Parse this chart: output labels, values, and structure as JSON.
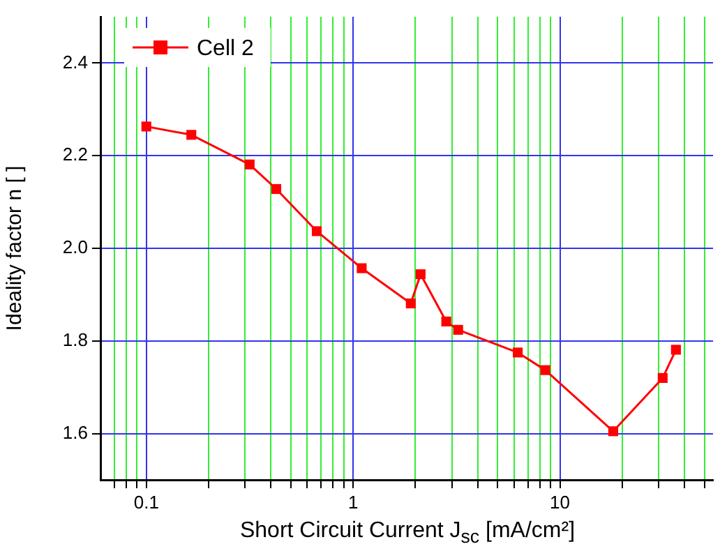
{
  "chart_data": {
    "type": "line",
    "xlabel": "Short Circuit Current J$_{sc}$ [mA/cm²]",
    "ylabel": "Ideality factor n [ ]",
    "x": [
      0.1,
      0.165,
      0.316,
      0.425,
      0.667,
      1.1,
      1.9,
      2.12,
      2.82,
      3.22,
      6.25,
      8.5,
      18.1,
      31.4,
      36.4
    ],
    "series": [
      {
        "name": "Cell 2",
        "color": "#ff0000",
        "values": [
          2.263,
          2.245,
          2.181,
          2.128,
          2.037,
          1.957,
          1.881,
          1.944,
          1.842,
          1.824,
          1.775,
          1.737,
          1.605,
          1.72,
          1.781
        ]
      }
    ],
    "log": "x",
    "xlim": [
      0.06,
      55
    ],
    "xticks": [
      {
        "value": 0.07,
        "label": null
      },
      {
        "value": 0.08,
        "label": null
      },
      {
        "value": 0.09,
        "label": null
      },
      0.1,
      {
        "value": 0.2,
        "label": null
      },
      {
        "value": 0.3,
        "label": null
      },
      {
        "value": 0.4,
        "label": null
      },
      {
        "value": 0.5,
        "label": null
      },
      {
        "value": 0.6,
        "label": null
      },
      {
        "value": 0.7,
        "label": null
      },
      {
        "value": 0.8,
        "label": null
      },
      {
        "value": 0.9,
        "label": null
      },
      1,
      {
        "value": 2,
        "label": null
      },
      {
        "value": 3,
        "label": null
      },
      {
        "value": 4,
        "label": null
      },
      {
        "value": 5,
        "label": null
      },
      {
        "value": 6,
        "label": null
      },
      {
        "value": 7,
        "label": null
      },
      {
        "value": 8,
        "label": null
      },
      {
        "value": 9,
        "label": null
      },
      10,
      {
        "value": 20,
        "label": null
      },
      {
        "value": 30,
        "label": null
      },
      {
        "value": 40,
        "label": null
      },
      {
        "value": 50,
        "label": null
      }
    ],
    "ylim": [
      1.5,
      2.5
    ],
    "yticks": [
      1.6,
      1.8,
      {
        "value": 2,
        "label": "2.0"
      },
      2.2,
      2.4
    ],
    "grid": true,
    "legend": "top left",
    "marker": "square",
    "line_style": "solid"
  }
}
